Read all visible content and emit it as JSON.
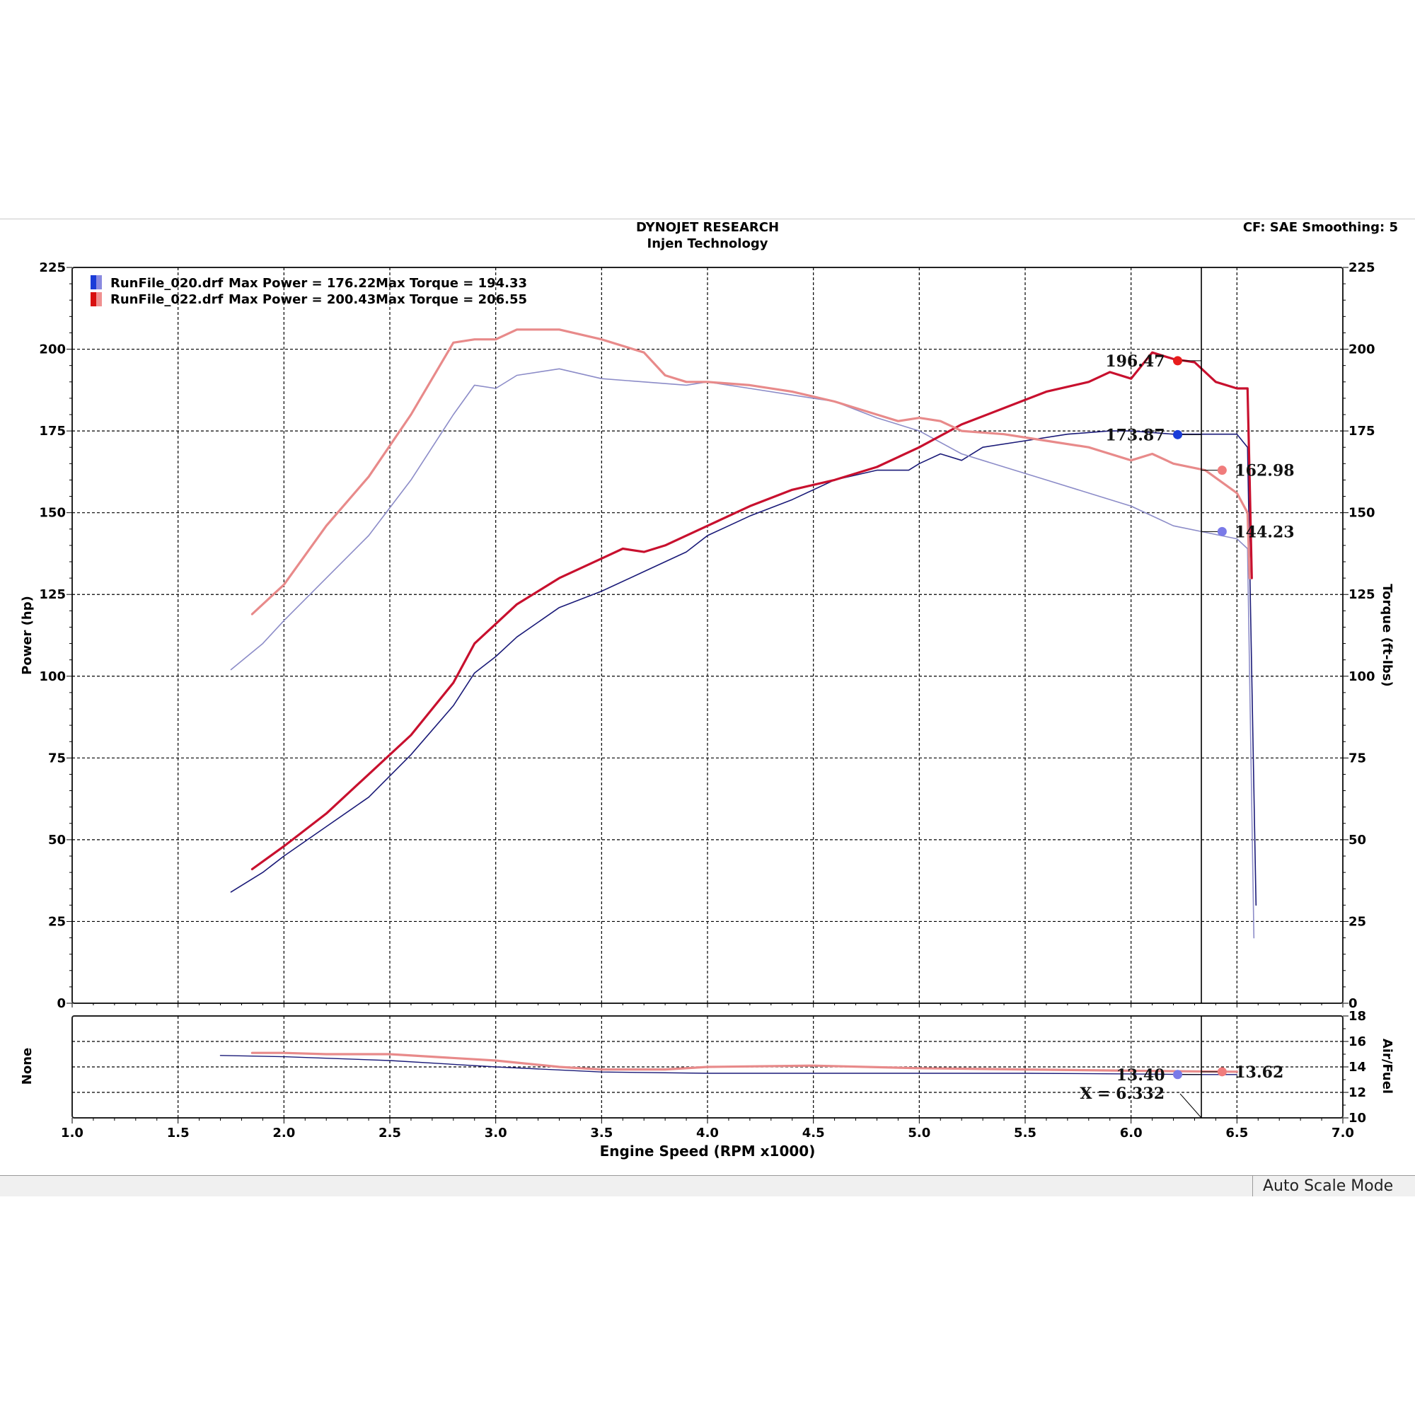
{
  "header": {
    "title": "DYNOJET RESEARCH",
    "subtitle": "Injen Technology",
    "settings": "CF: SAE  Smoothing: 5"
  },
  "status_bar": {
    "mode": "Auto Scale Mode"
  },
  "colors": {
    "run_020_power": "#1a1a78",
    "run_020_torque": "#8c8cc8",
    "run_022_power": "#c8102e",
    "run_022_torque": "#e88a8a",
    "marker_blue": "#1a3cd8",
    "marker_red": "#e81c1c",
    "marker_light_blue": "#7a7ae8",
    "marker_light_red": "#f07c7c"
  },
  "chart_data": [
    {
      "type": "line",
      "legend": [
        {
          "file": "RunFile_020.drf",
          "power_text": "Max Power = 176.22",
          "torque_text": "Max Torque = 194.33",
          "color": "blue"
        },
        {
          "file": "RunFile_022.drf",
          "power_text": "Max Power = 200.43",
          "torque_text": "Max Torque = 206.55",
          "color": "red"
        }
      ],
      "xlabel": "Engine Speed (RPM x1000)",
      "ylabel_left": "Power (hp)",
      "ylabel_right": "Torque (ft-lbs)",
      "xlim": [
        1.0,
        7.0
      ],
      "ylim": [
        0,
        225
      ],
      "x_ticks": [
        "1.0",
        "1.5",
        "2.0",
        "2.5",
        "3.0",
        "3.5",
        "4.0",
        "4.5",
        "5.0",
        "5.5",
        "6.0",
        "6.5",
        "7.0"
      ],
      "y_ticks": [
        "0",
        "25",
        "50",
        "75",
        "100",
        "125",
        "150",
        "175",
        "200",
        "225"
      ],
      "grid": true,
      "cursor_x": 6.332,
      "series": [
        {
          "name": "RunFile_020.drf Power",
          "unit": "hp",
          "x": [
            1.75,
            1.9,
            2.0,
            2.2,
            2.4,
            2.6,
            2.8,
            2.9,
            3.0,
            3.1,
            3.3,
            3.5,
            3.7,
            3.9,
            4.0,
            4.2,
            4.4,
            4.6,
            4.8,
            4.95,
            5.0,
            5.1,
            5.2,
            5.3,
            5.5,
            5.7,
            5.9,
            6.0,
            6.2,
            6.35,
            6.5,
            6.55,
            6.57,
            6.59
          ],
          "values": [
            34,
            40,
            45,
            54,
            63,
            76,
            91,
            101,
            106,
            112,
            121,
            126,
            132,
            138,
            143,
            149,
            154,
            160,
            163,
            163,
            165,
            168,
            166,
            170,
            172,
            174,
            175,
            175,
            174,
            174,
            174,
            170,
            100,
            30
          ]
        },
        {
          "name": "RunFile_020.drf Torque",
          "unit": "ft-lbs",
          "x": [
            1.75,
            1.9,
            2.0,
            2.2,
            2.4,
            2.6,
            2.8,
            2.9,
            3.0,
            3.1,
            3.3,
            3.5,
            3.7,
            3.9,
            4.0,
            4.2,
            4.4,
            4.6,
            4.8,
            5.0,
            5.2,
            5.4,
            5.6,
            5.8,
            6.0,
            6.2,
            6.35,
            6.5,
            6.55,
            6.58
          ],
          "values": [
            102,
            110,
            117,
            130,
            143,
            160,
            180,
            189,
            188,
            192,
            194,
            191,
            190,
            189,
            190,
            188,
            186,
            184,
            179,
            175,
            168,
            164,
            160,
            156,
            152,
            146,
            144,
            142,
            139,
            20
          ]
        },
        {
          "name": "RunFile_022.drf Power",
          "unit": "hp",
          "x": [
            1.85,
            2.0,
            2.2,
            2.4,
            2.6,
            2.8,
            2.9,
            3.0,
            3.1,
            3.3,
            3.5,
            3.6,
            3.7,
            3.8,
            4.0,
            4.2,
            4.4,
            4.6,
            4.8,
            5.0,
            5.2,
            5.4,
            5.6,
            5.8,
            5.9,
            6.0,
            6.1,
            6.2,
            6.3,
            6.4,
            6.5,
            6.55,
            6.56,
            6.57
          ],
          "values": [
            41,
            48,
            58,
            70,
            82,
            98,
            110,
            116,
            122,
            130,
            136,
            139,
            138,
            140,
            146,
            152,
            157,
            160,
            164,
            170,
            177,
            182,
            187,
            190,
            193,
            191,
            199,
            197,
            196,
            190,
            188,
            188,
            160,
            130
          ]
        },
        {
          "name": "RunFile_022.drf Torque",
          "unit": "ft-lbs",
          "x": [
            1.85,
            2.0,
            2.2,
            2.4,
            2.6,
            2.8,
            2.9,
            3.0,
            3.1,
            3.3,
            3.5,
            3.7,
            3.8,
            3.9,
            4.0,
            4.2,
            4.4,
            4.6,
            4.8,
            4.9,
            5.0,
            5.1,
            5.2,
            5.4,
            5.6,
            5.8,
            6.0,
            6.1,
            6.2,
            6.35,
            6.5,
            6.55,
            6.56
          ],
          "values": [
            119,
            128,
            146,
            161,
            180,
            202,
            203,
            203,
            206,
            206,
            203,
            199,
            192,
            190,
            190,
            189,
            187,
            184,
            180,
            178,
            179,
            178,
            175,
            174,
            172,
            170,
            166,
            168,
            165,
            163,
            156,
            150,
            130
          ]
        }
      ],
      "annotations": [
        {
          "label": "196.47",
          "x": 6.22,
          "y": 196.47,
          "color": "red"
        },
        {
          "label": "173.87",
          "x": 6.22,
          "y": 173.87,
          "color": "blue"
        },
        {
          "label": "162.98",
          "x": 6.43,
          "y": 162.98,
          "color": "light-red"
        },
        {
          "label": "144.23",
          "x": 6.43,
          "y": 144.23,
          "color": "light-blue"
        }
      ]
    },
    {
      "type": "line",
      "ylabel_left": "None",
      "ylabel_right": "Air/Fuel",
      "xlim": [
        1.0,
        7.0
      ],
      "ylim": [
        10,
        18
      ],
      "y_ticks": [
        "10",
        "12",
        "14",
        "16",
        "18"
      ],
      "grid": true,
      "cursor_x": 6.332,
      "cursor_label": "X = 6.332",
      "series": [
        {
          "name": "RunFile_020.drf Air/Fuel",
          "x": [
            1.7,
            2.0,
            2.5,
            3.0,
            3.5,
            4.0,
            4.5,
            5.0,
            5.5,
            6.0,
            6.3,
            6.5
          ],
          "values": [
            14.9,
            14.8,
            14.5,
            14.0,
            13.6,
            13.5,
            13.5,
            13.5,
            13.5,
            13.45,
            13.4,
            13.4
          ]
        },
        {
          "name": "RunFile_022.drf Air/Fuel",
          "x": [
            1.85,
            2.0,
            2.2,
            2.5,
            3.0,
            3.3,
            3.5,
            3.8,
            4.0,
            4.5,
            5.0,
            5.5,
            6.0,
            6.3,
            6.5
          ],
          "values": [
            15.1,
            15.1,
            15.0,
            15.0,
            14.5,
            14.0,
            13.8,
            13.8,
            14.0,
            14.1,
            13.9,
            13.8,
            13.7,
            13.65,
            13.62
          ]
        }
      ],
      "annotations": [
        {
          "label": "13.40",
          "x": 6.22,
          "y": 13.4,
          "color": "light-blue"
        },
        {
          "label": "13.62",
          "x": 6.43,
          "y": 13.62,
          "color": "light-red"
        }
      ]
    }
  ]
}
